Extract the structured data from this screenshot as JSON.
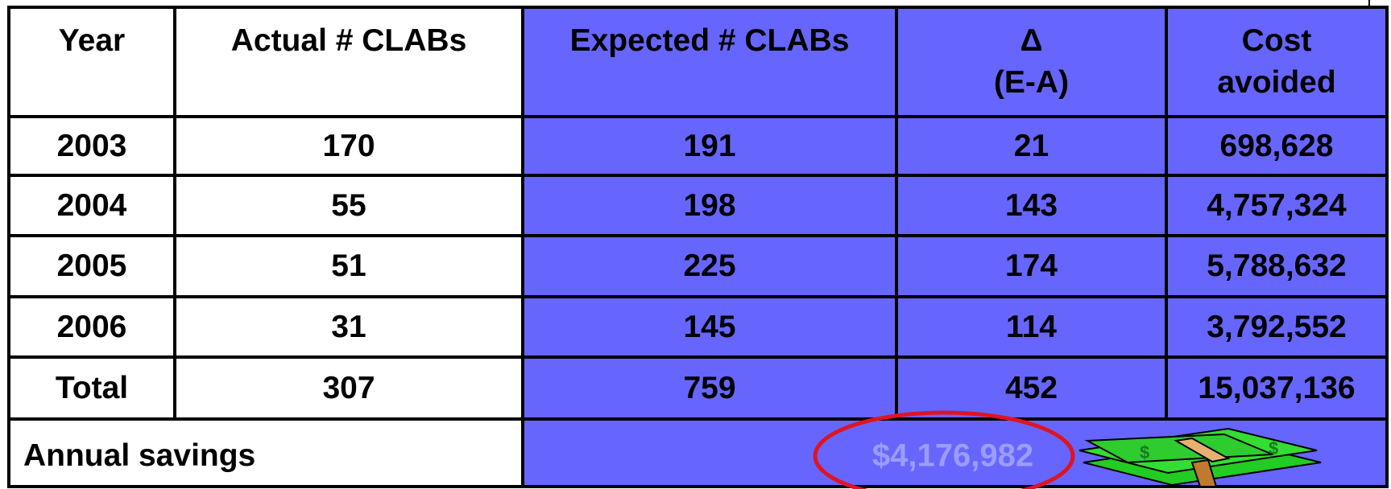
{
  "table": {
    "header": [
      [
        "Year"
      ],
      [
        "Actual # CLABs"
      ],
      [
        "Expected # CLABs"
      ],
      [
        "Δ",
        "(E-A)"
      ],
      [
        "Cost",
        "avoided"
      ]
    ],
    "rows": [
      [
        "2003",
        "170",
        "191",
        "21",
        "698,628"
      ],
      [
        "2004",
        "55",
        "198",
        "143",
        "4,757,324"
      ],
      [
        "2005",
        "51",
        "225",
        "174",
        "5,788,632"
      ],
      [
        "2006",
        "31",
        "145",
        "114",
        "3,792,552"
      ],
      [
        "Total",
        "307",
        "759",
        "452",
        "15,037,136"
      ]
    ],
    "footer": {
      "label": "Annual savings",
      "value": "$4,176,982"
    }
  }
}
